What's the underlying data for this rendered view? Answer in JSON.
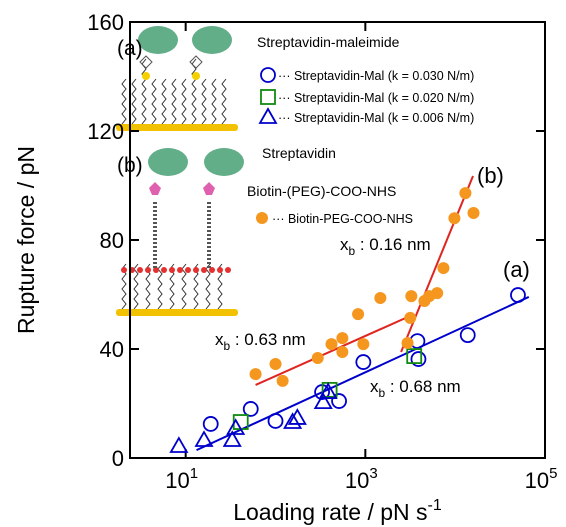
{
  "chart_data": {
    "type": "scatter",
    "x_label": {
      "text": "Loading rate / pN s",
      "sup": "-1"
    },
    "y_label": "Rupture force / pN",
    "xlog": true,
    "xlim": [
      2.4,
      100000
    ],
    "ylim": [
      0,
      160
    ],
    "xticks": [
      {
        "value": 10,
        "label": "10",
        "sup": "1"
      },
      {
        "value": 1000,
        "label": "10",
        "sup": "3"
      },
      {
        "value": 100000,
        "label": "10",
        "sup": "5"
      }
    ],
    "yticks": [
      0,
      40,
      80,
      120,
      160
    ],
    "series": [
      {
        "name": "··· Streptavidin-Mal (k = 0.030 N/m)",
        "color": "#0000cc",
        "marker": "circle",
        "x": [
          19,
          53,
          100,
          330,
          510,
          950,
          3800,
          3900,
          13800,
          50000
        ],
        "values": [
          12.5,
          18,
          13.6,
          24.2,
          20.9,
          35.2,
          42.9,
          36.3,
          45.1,
          59.8
        ]
      },
      {
        "name": "··· Streptavidin-Mal (k = 0.020 N/m)",
        "color": "#108a10",
        "marker": "square",
        "x": [
          41,
          400,
          3500
        ],
        "values": [
          13.2,
          25,
          37.4
        ]
      },
      {
        "name": "··· Streptavidin-Mal (k = 0.006 N/m)",
        "color": "#0000cc",
        "marker": "triangle",
        "x": [
          8.4,
          16,
          33,
          36,
          155,
          175,
          340,
          385
        ],
        "values": [
          4.4,
          6.6,
          6.6,
          11,
          13.2,
          14.7,
          20.5,
          24.2
        ]
      },
      {
        "name": "··· Biotin-PEG-COO-NHS",
        "color": "#f5961e",
        "marker": "filled-circle",
        "x": [
          60,
          100,
          120,
          295,
          420,
          555,
          555,
          830,
          950,
          1470,
          2950,
          3160,
          3250,
          4550,
          5150,
          6300,
          7400,
          9800,
          13000,
          16000
        ],
        "values": [
          30.8,
          34.5,
          28.3,
          36.7,
          41.8,
          44,
          38.9,
          52.8,
          41.8,
          58.7,
          42.2,
          51.4,
          59.4,
          57.6,
          59.4,
          60.5,
          69.7,
          88,
          97.2,
          89.9
        ]
      }
    ],
    "fits": [
      {
        "color": "#0000cc",
        "x": [
          13.2,
          66000
        ],
        "values": [
          2.9,
          59.1
        ]
      },
      {
        "color": "#e0241e",
        "x": [
          60,
          2950
        ],
        "values": [
          26.8,
          51.7
        ]
      },
      {
        "color": "#e0241e",
        "x": [
          2500,
          15800
        ],
        "values": [
          38.9,
          103.5
        ]
      }
    ],
    "annotations": [
      {
        "text": "(b)"
      },
      {
        "text": "(a)"
      },
      {
        "text": "x",
        "sub": "b",
        "rest": " : 0.16 nm"
      },
      {
        "text": "x",
        "sub": "b",
        "rest": " : 0.63 nm"
      },
      {
        "text": "x",
        "sub": "b",
        "rest": " : 0.68 nm"
      }
    ],
    "inset": {
      "label_a": "(a)",
      "label_b": "(b)",
      "title_a": "Streptavidin-maleimide",
      "title_b": "Streptavidin",
      "linker": "Biotin-(PEG)-COO-NHS"
    }
  }
}
